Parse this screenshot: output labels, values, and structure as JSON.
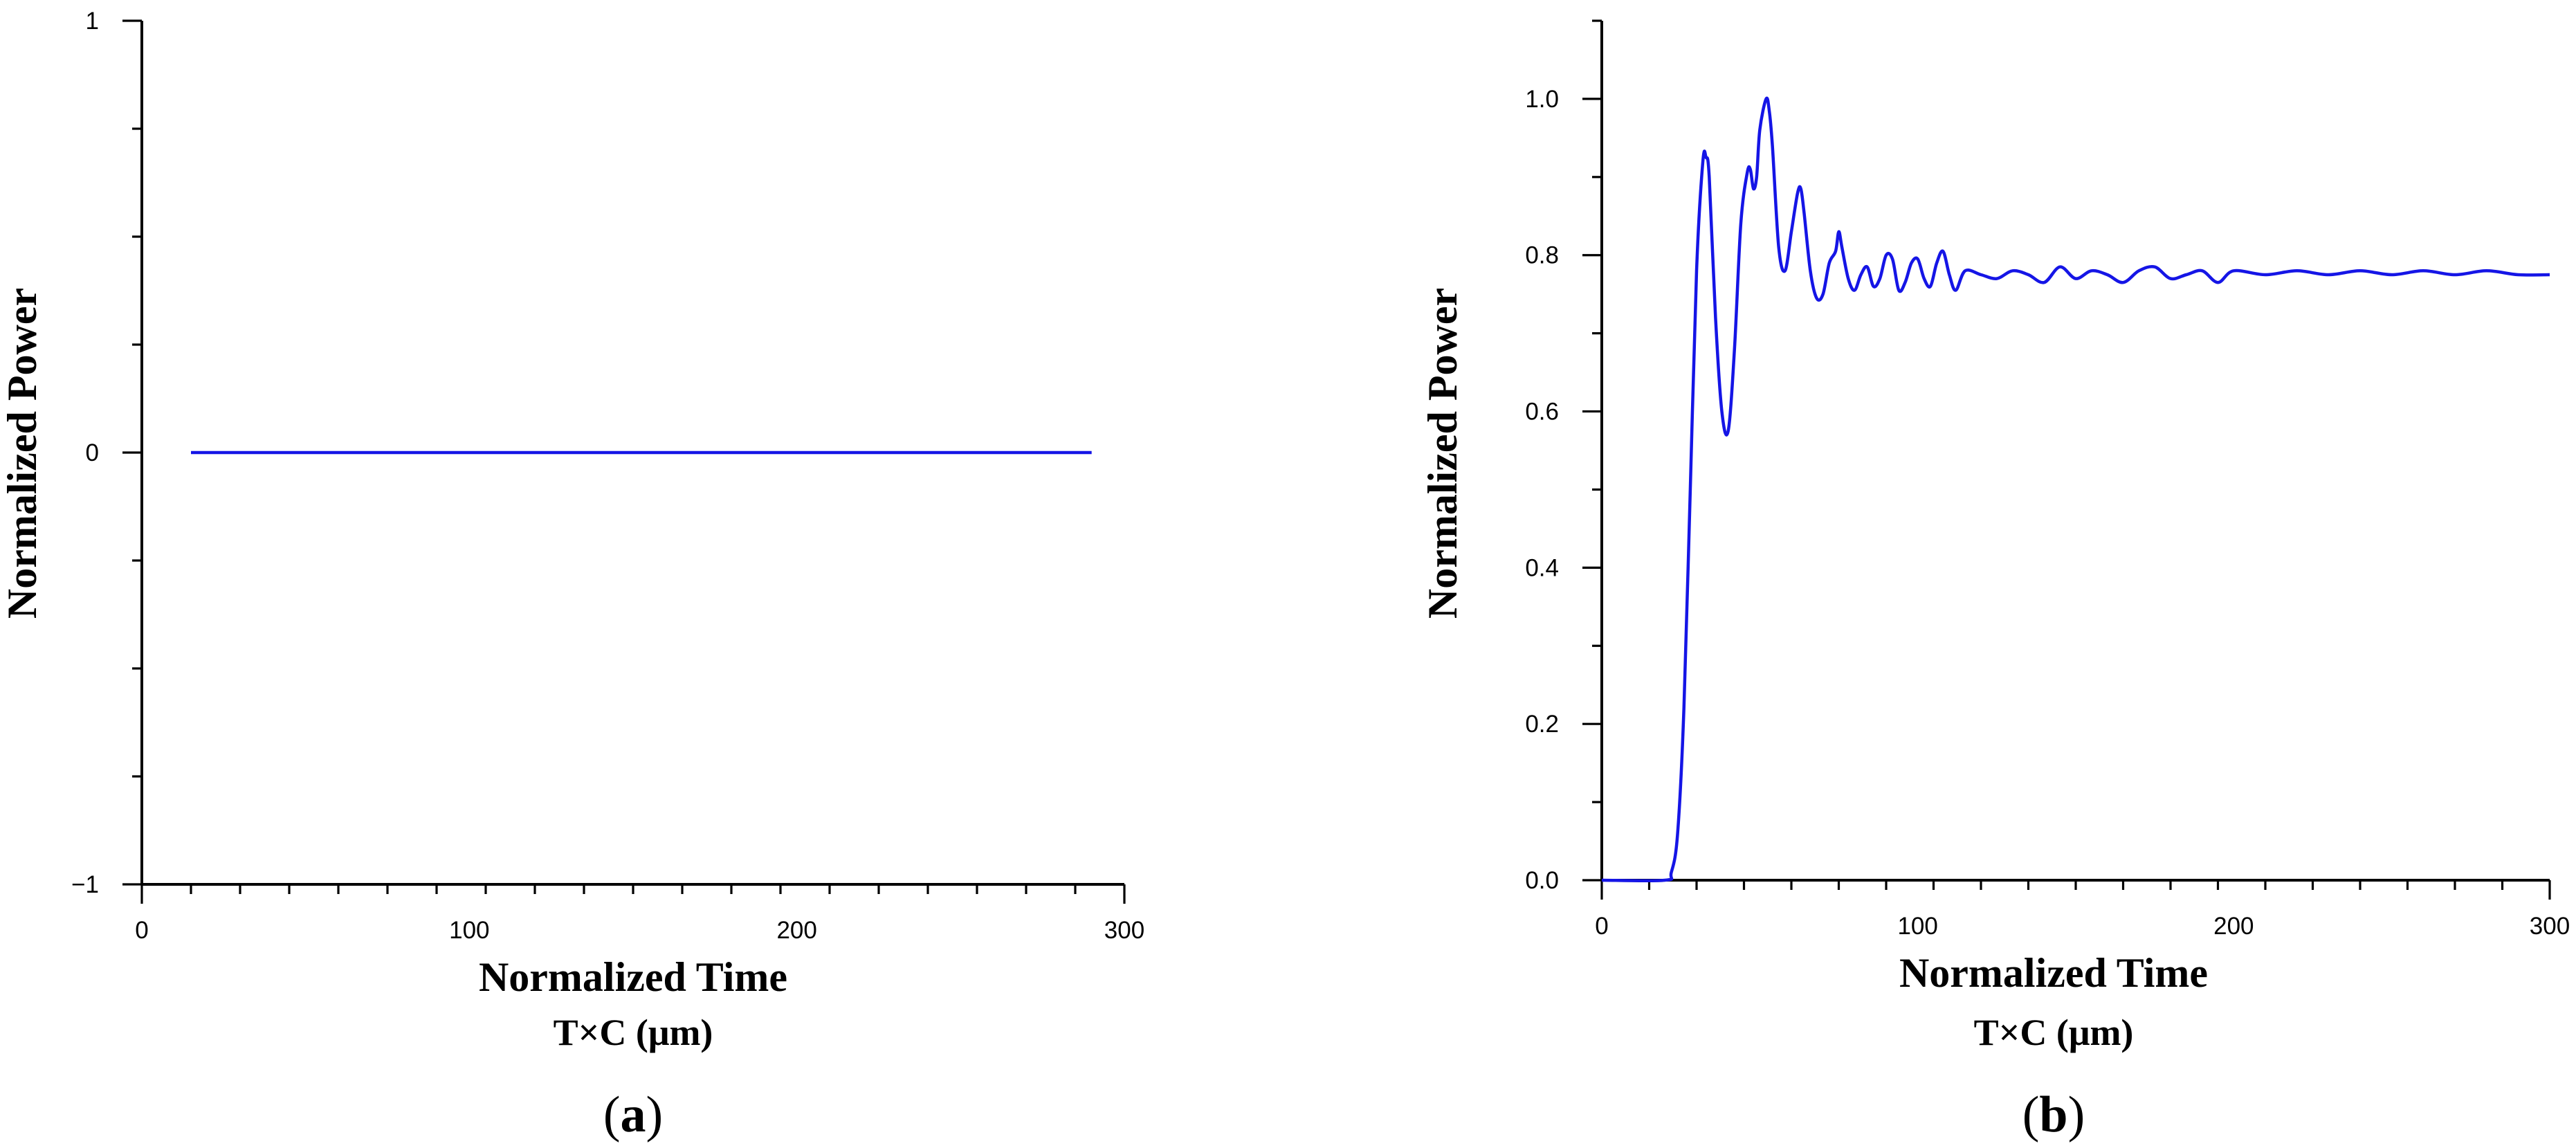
{
  "chart_data": [
    {
      "panel": "(a)",
      "panel_letter": "a",
      "type": "line",
      "xlabel": "Normalized Time",
      "xlabel2": "T×C (μm)",
      "ylabel": "Normalized Power",
      "xlim": [
        0,
        300
      ],
      "ylim": [
        -1,
        1
      ],
      "x_ticks": [
        0,
        100,
        200,
        300
      ],
      "x_tick_labels": [
        "0",
        "100",
        "200",
        "300"
      ],
      "y_ticks": [
        -1,
        0,
        1
      ],
      "y_tick_labels": [
        "−1",
        "0",
        "1"
      ],
      "line_color": "#1515e6",
      "series": [
        {
          "x": [
            15,
            290
          ],
          "y": [
            0,
            0
          ]
        }
      ]
    },
    {
      "panel": "(b)",
      "panel_letter": "b",
      "type": "line",
      "xlabel": "Normalized Time",
      "xlabel2": "T×C (μm)",
      "ylabel": "Normalized Power",
      "xlim": [
        0,
        300
      ],
      "ylim": [
        0,
        1.1
      ],
      "x_ticks": [
        0,
        100,
        200,
        300
      ],
      "x_tick_labels": [
        "0",
        "100",
        "200",
        "300"
      ],
      "y_ticks": [
        0.0,
        0.2,
        0.4,
        0.6,
        0.8,
        1.0
      ],
      "y_tick_labels": [
        "0.0",
        "0.2",
        "0.4",
        "0.6",
        "0.8",
        "1.0"
      ],
      "line_color": "#1515e6",
      "series": [
        {
          "x": [
            0,
            20,
            22,
            24,
            26,
            28,
            30,
            32,
            33,
            34,
            36,
            38,
            40,
            42,
            44,
            46,
            47,
            48,
            49,
            50,
            52,
            53,
            54,
            56,
            58,
            60,
            62,
            63,
            64,
            66,
            68,
            70,
            72,
            74,
            75,
            76,
            78,
            80,
            82,
            84,
            86,
            88,
            90,
            92,
            94,
            96,
            98,
            100,
            102,
            104,
            106,
            108,
            110,
            112,
            115,
            120,
            125,
            130,
            135,
            140,
            145,
            150,
            155,
            160,
            165,
            170,
            175,
            180,
            185,
            190,
            195,
            200,
            210,
            220,
            230,
            240,
            250,
            260,
            270,
            280,
            290,
            300
          ],
          "y": [
            0.0,
            0.0,
            0.01,
            0.06,
            0.22,
            0.5,
            0.78,
            0.92,
            0.925,
            0.9,
            0.72,
            0.6,
            0.575,
            0.68,
            0.84,
            0.905,
            0.91,
            0.885,
            0.9,
            0.96,
            1.0,
            0.985,
            0.94,
            0.81,
            0.78,
            0.83,
            0.88,
            0.885,
            0.855,
            0.78,
            0.745,
            0.75,
            0.79,
            0.805,
            0.83,
            0.81,
            0.77,
            0.755,
            0.775,
            0.785,
            0.76,
            0.77,
            0.8,
            0.795,
            0.755,
            0.765,
            0.79,
            0.795,
            0.77,
            0.76,
            0.79,
            0.805,
            0.775,
            0.755,
            0.78,
            0.775,
            0.77,
            0.78,
            0.775,
            0.765,
            0.785,
            0.77,
            0.78,
            0.775,
            0.765,
            0.78,
            0.785,
            0.77,
            0.775,
            0.78,
            0.765,
            0.78,
            0.775,
            0.78,
            0.775,
            0.78,
            0.775,
            0.78,
            0.775,
            0.78,
            0.775,
            0.775
          ]
        }
      ]
    }
  ]
}
